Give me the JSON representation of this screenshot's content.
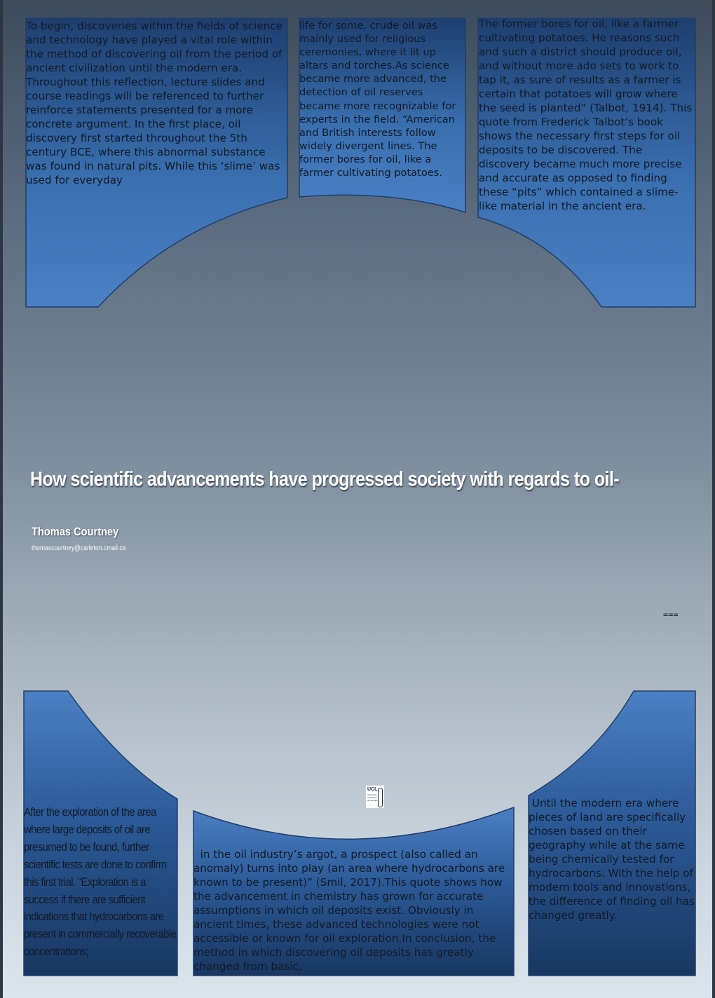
{
  "poster": {
    "title": "How scientific advancements have progressed society with regards to oil-",
    "author": "Thomas Courtney",
    "email": "thomascourtney@carleton.cmail.ca",
    "marker": "===",
    "logo": {
      "name": "UCL",
      "sub": "Université catholique de Louvain"
    }
  },
  "panels": {
    "top_left": "To begin, discoveries within the fields of science and technology have played a vital role within the method of discovering oil from the period of ancient civilization until the modern era. Throughout this reflection, lecture slides and course readings will be referenced to further reinforce statements presented for a more concrete argument. In the first place, oil discovery first started throughout the 5th century BCE, where this abnormal substance was found in natural pits. While this ‘slime’ was used for everyday",
    "top_middle": " life for some, crude oil was mainly used for religious ceremonies, where it lit up altars and torches.As science became more advanced, the detection of oil reserves became more recognizable for experts in the field. “American and British interests follow widely divergent lines. The former bores for oil, like a farmer cultivating potatoes.",
    "top_right": "The former bores for oil, like a farmer cultivating potatoes. He reasons such and such a district should produce oil, and without more ado sets to work to tap it, as sure of results as a farmer is certain that potatoes will grow where the seed is planted” (Talbot, 1914). This quote from Frederick Talbot’s book shows the necessary first steps for oil deposits to be discovered. The discovery became much more precise and accurate as opposed to finding these “pits” which contained a slime-like material in the ancient era.",
    "bottom_left": "After the exploration of the area where large deposits of oil are presumed to be found, further scientific tests are done to confirm this first trial. “Exploration is a success if there are sufficient indications that hydrocarbons are present in commercially recoverable concentrations;",
    "bottom_middle": "  in the oil industry’s argot, a prospect (also called an anomaly) turns into play (an area where hydrocarbons are known to be present)” (Smil, 2017).This quote shows how the advancement in chemistry has grown for accurate assumptions in which oil deposits exist. Obviously in ancient times, these advanced technologies were not accessible or known for oil exploration.In conclusion, the method in which discovering oil deposits has greatly changed from basic,",
    "bottom_right": " Until the modern era where pieces of land are specifically chosen based on their geography while at the same being chemically tested for hydrocarbons. With the help of modern tools and innovations, the difference of finding oil has changed greatly."
  },
  "colors": {
    "panel_dark": "#1e4273",
    "panel_light": "#4a7fc3",
    "panel_border": "#1f3d6b"
  }
}
